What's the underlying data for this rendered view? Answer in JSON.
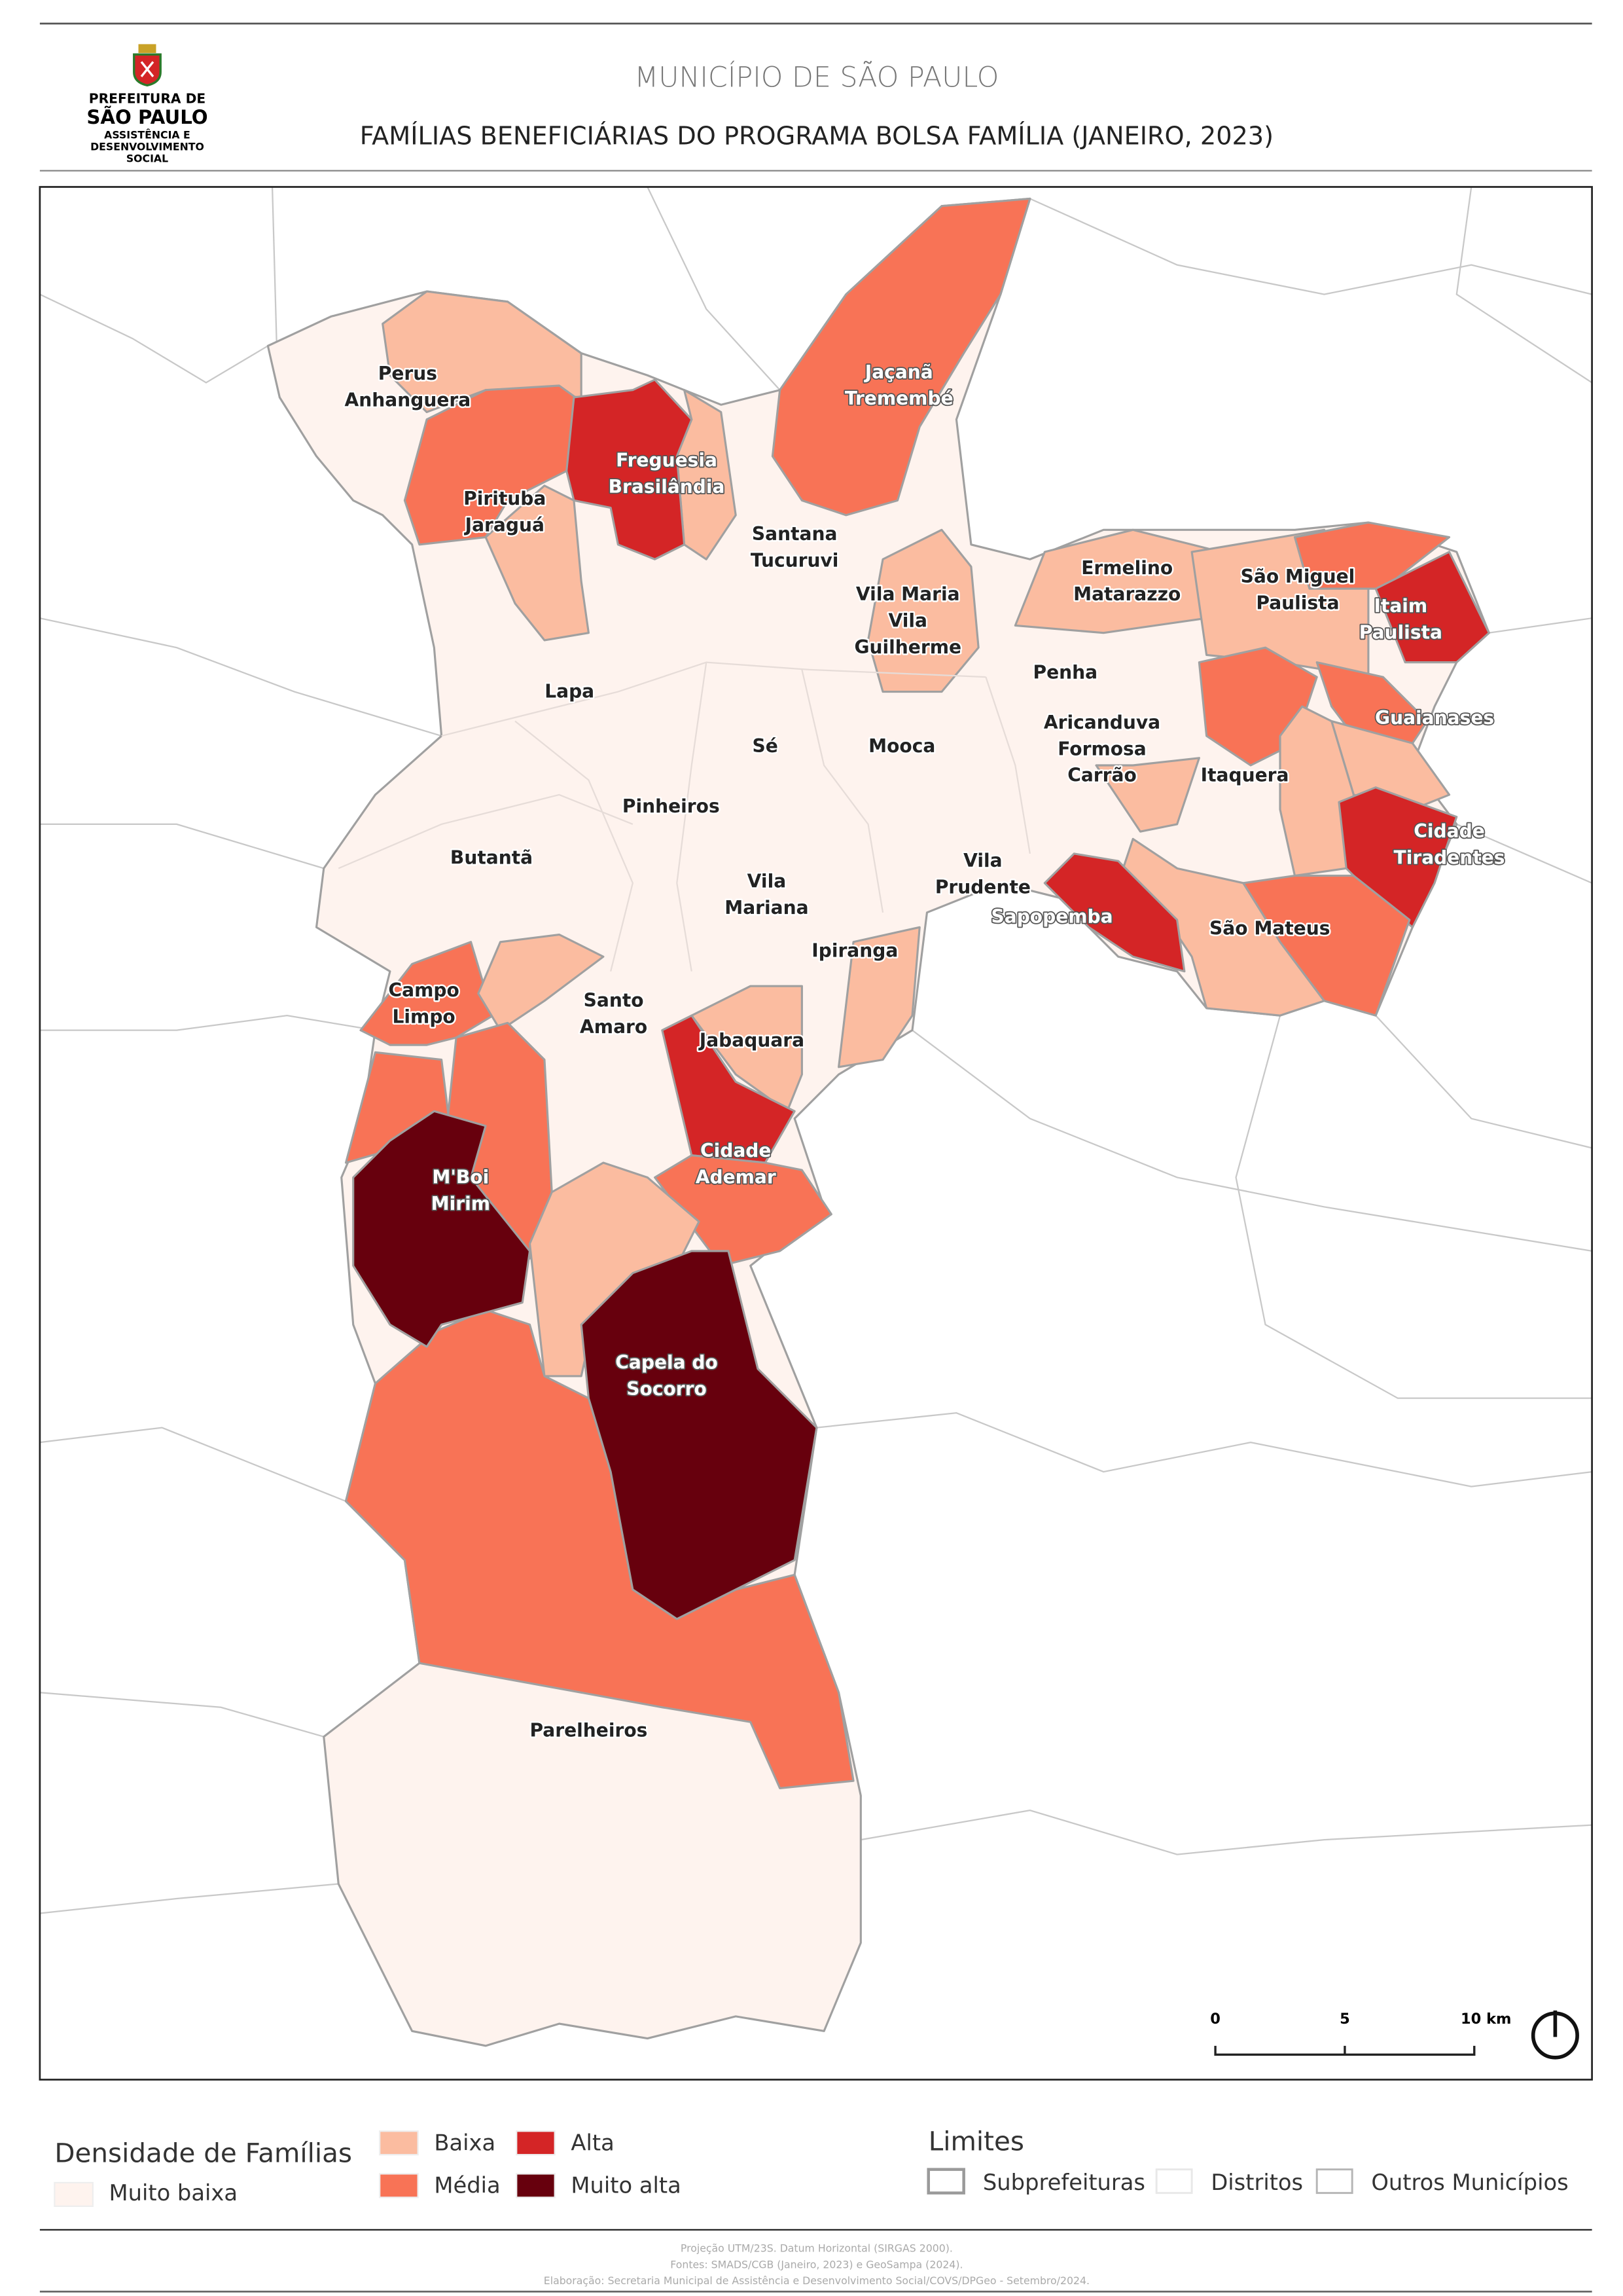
{
  "header": {
    "logo": {
      "line1": "PREFEITURA DE",
      "line2": "SÃO PAULO",
      "line3": "ASSISTÊNCIA E",
      "line4": "DESENVOLVIMENTO",
      "line5": "SOCIAL"
    },
    "title": "MUNICÍPIO DE SÃO PAULO",
    "subtitle": "FAMÍLIAS BENEFICIÁRIAS DO PROGRAMA BOLSA FAMÍLIA (JANEIRO, 2023)"
  },
  "map": {
    "labels": [
      "Perus\nAnhanguera",
      "Pirituba\nJaraguá",
      "Freguesia\nBrasilândia",
      "Jaçanã\nTremembé",
      "Santana\nTucuruvi",
      "Vila Maria\nVila\nGuilherme",
      "Ermelino\nMatarazzo",
      "São Miguel\nPaulista",
      "Itaim\nPaulista",
      "Penha",
      "Guaianases",
      "Lapa",
      "Sé",
      "Mooca",
      "Aricanduva\nFormosa\nCarrão",
      "Itaquera",
      "Pinheiros",
      "Butantã",
      "Cidade\nTiradentes",
      "Vila\nPrudente",
      "Vila\nMariana",
      "Sapopemba",
      "São Mateus",
      "Ipiranga",
      "Campo\nLimpo",
      "Santo\nAmaro",
      "Jabaquara",
      "Cidade\nAdemar",
      "M'Boi\nMirim",
      "Capela do\nSocorro",
      "Parelheiros"
    ],
    "scale_bar": {
      "ticks": [
        "0",
        "5",
        "10 km"
      ]
    },
    "north_arrow": "north-arrow"
  },
  "legend": {
    "density_title": "Densidade de Famílias",
    "classes": [
      {
        "label": "Muito baixa",
        "color": "#fef3ee"
      },
      {
        "label": "Baixa",
        "color": "#fbbca0"
      },
      {
        "label": "Média",
        "color": "#f87356"
      },
      {
        "label": "Alta",
        "color": "#d42526"
      },
      {
        "label": "Muito alta",
        "color": "#67000d"
      }
    ],
    "limits_title": "Limites",
    "limits": [
      {
        "label": "Subprefeituras",
        "stroke": "#9a9a9a"
      },
      {
        "label": "Distritos",
        "stroke": "#e8e8e8"
      },
      {
        "label": "Outros Municípios",
        "stroke": "#b5b5b5"
      }
    ]
  },
  "footer": {
    "line1": "Projeção UTM/23S. Datum Horizontal (SIRGAS 2000).",
    "line2": "Fontes: SMADS/CGB (Janeiro, 2023) e GeoSampa (2024).",
    "line3": "Elaboração: Secretaria Municipal de Assistência e Desenvolvimento Social/COVS/DPGeo - Setembro/2024."
  }
}
